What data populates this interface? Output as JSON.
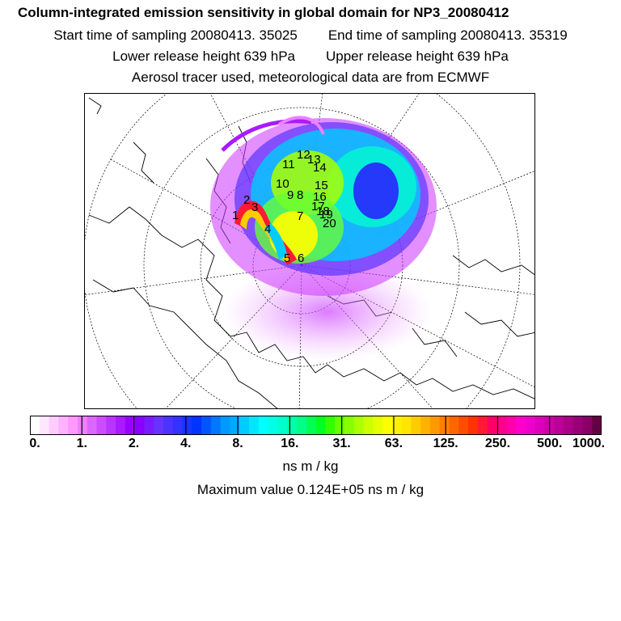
{
  "header": {
    "title": "Column-integrated emission sensitivity in global domain for NP3_20080412",
    "start_time": "Start time of sampling 20080413. 35025",
    "end_time": "End time of sampling 20080413. 35319",
    "lower_height": "Lower release height  639 hPa",
    "upper_height": "Upper release height  639 hPa",
    "info": "Aerosol tracer used, meteorological data are from ECMWF"
  },
  "map": {
    "trajectory_labels": [
      "1",
      "2",
      "3",
      "4",
      "5",
      "6",
      "7",
      "8",
      "9",
      "10",
      "11",
      "12",
      "13",
      "14",
      "15",
      "16",
      "17",
      "18",
      "19",
      "20"
    ]
  },
  "colorbar": {
    "tick_labels": [
      "0.",
      "1.",
      "2.",
      "4.",
      "8.",
      "16.",
      "31.",
      "63.",
      "125.",
      "250.",
      "500.",
      "1000."
    ],
    "colors": [
      "#ffffff",
      "#ffe6ff",
      "#ffccff",
      "#ffb3ff",
      "#ff99ff",
      "#ee80ff",
      "#dd66ff",
      "#cc4dff",
      "#bb33ff",
      "#aa1aff",
      "#9900ff",
      "#8800ff",
      "#7a1aff",
      "#6633ff",
      "#4d33ff",
      "#3333ff",
      "#1a33ff",
      "#0033ff",
      "#0055ff",
      "#0077ff",
      "#0099ff",
      "#00aaff",
      "#00ccff",
      "#00e6ff",
      "#00ffff",
      "#00ffe6",
      "#00ffcc",
      "#00ffaa",
      "#00ff88",
      "#00ff55",
      "#00ff22",
      "#33ff00",
      "#66ff00",
      "#88ff00",
      "#aaff00",
      "#ccff00",
      "#e6ff00",
      "#ffff00",
      "#fff000",
      "#ffe600",
      "#ffcc00",
      "#ffb300",
      "#ff9900",
      "#ff8000",
      "#ff6600",
      "#ff4d00",
      "#ff3300",
      "#ff1a33",
      "#ff0066",
      "#ff0088",
      "#ff00aa",
      "#ff00cc",
      "#ee00cc",
      "#dd00bb",
      "#cc00aa",
      "#bb0099",
      "#aa0088",
      "#990077",
      "#880066",
      "#660044"
    ],
    "units": "ns m / kg"
  },
  "footer": {
    "maximum": "Maximum value  0.124E+05 ns m / kg"
  }
}
